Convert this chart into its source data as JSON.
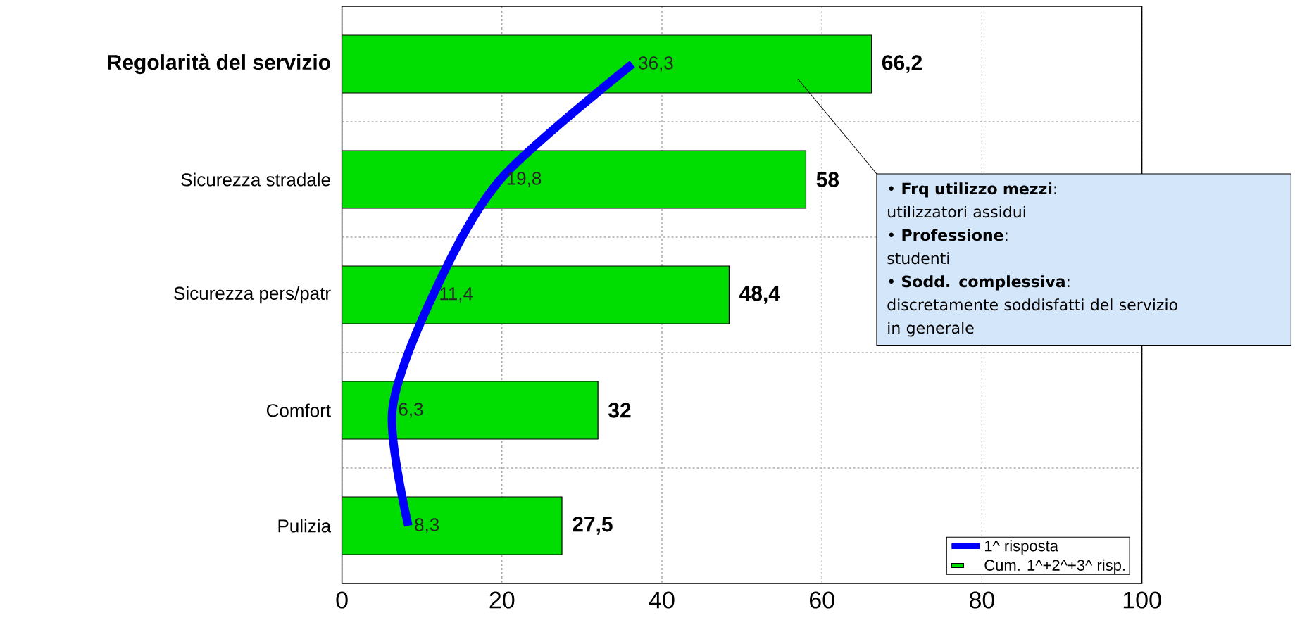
{
  "chart_data": {
    "type": "bar",
    "orientation": "horizontal",
    "categories": [
      "Regolarità del servizio",
      "Sicurezza stradale",
      "Sicurezza pers/patr",
      "Comfort",
      "Pulizia"
    ],
    "series": [
      {
        "name": "Cum. 1^+2^+3^ risp.",
        "color": "#00dd00",
        "values": [
          66.2,
          58,
          48.4,
          32,
          27.5
        ],
        "value_labels": [
          "66,2",
          "58",
          "48,4",
          "32",
          "27,5"
        ]
      },
      {
        "name": "1^ risposta",
        "type": "line",
        "color": "#0000ff",
        "values": [
          36.3,
          19.8,
          11.4,
          6.3,
          8.3
        ],
        "value_labels": [
          "36,3",
          "19,8",
          "11,4",
          "6,3",
          "8,3"
        ]
      }
    ],
    "xlim": [
      0,
      100
    ],
    "xticks": [
      0,
      20,
      40,
      60,
      80,
      100
    ],
    "grid": true,
    "legend": "bottom right",
    "annotations": [
      "• **Frq utilizzo mezzi**:",
      "utilizzatori assidui",
      "• **Professione**:",
      "studenti",
      "• **Sodd. complessiva**:",
      "discretamente soddisfatti del servizio",
      "in generale"
    ]
  }
}
